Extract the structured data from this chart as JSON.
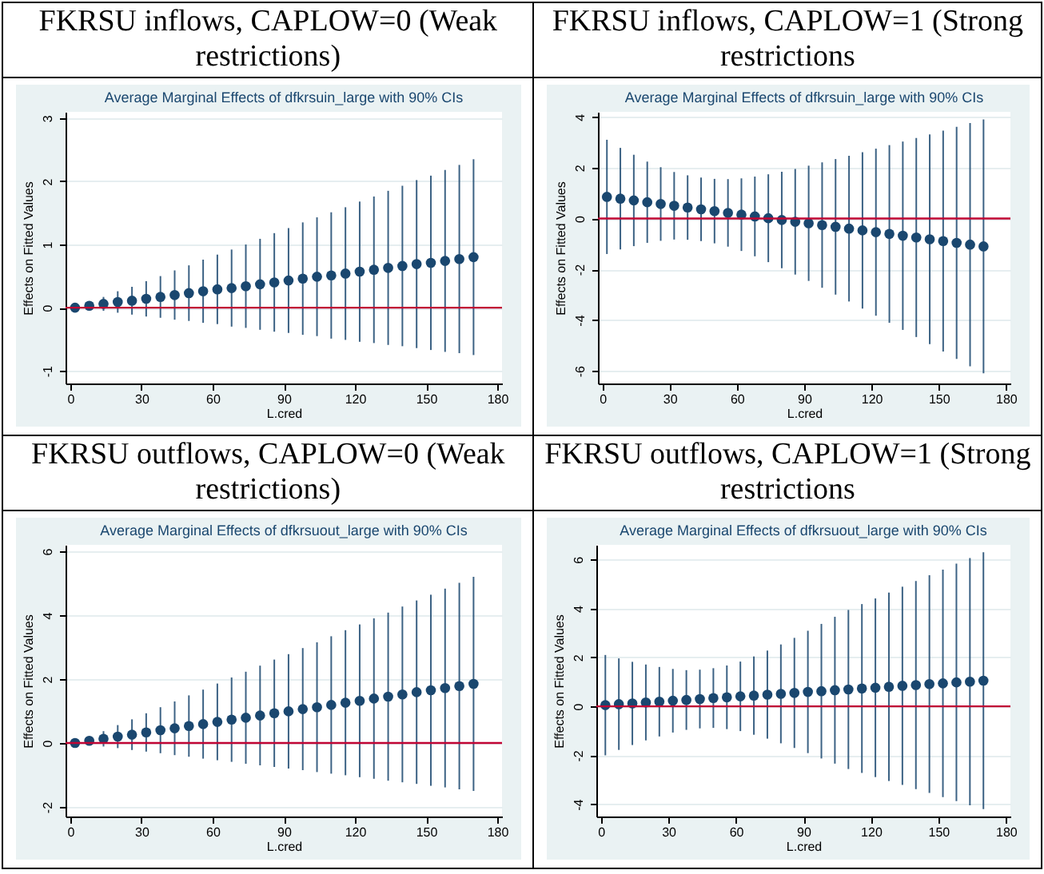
{
  "chart_data": [
    {
      "type": "scatter",
      "title": "FKRSU inflows, CAPLOW=0 (Weak restrictions)",
      "subtitle": "Average Marginal Effects of dfkrsuin_large with 90% CIs",
      "xlabel": "L.cred",
      "ylabel": "Effects on Fitted Values",
      "x": [
        2,
        8,
        14,
        20,
        26,
        32,
        38,
        44,
        50,
        56,
        62,
        68,
        74,
        80,
        86,
        92,
        98,
        104,
        110,
        116,
        122,
        128,
        134,
        140,
        146,
        152,
        158,
        164,
        170
      ],
      "xlim": [
        -2,
        182
      ],
      "xticks": [
        0,
        30,
        60,
        90,
        120,
        150,
        180
      ],
      "ylim": [
        -1.2,
        3.1
      ],
      "yticks": [
        -1,
        0,
        1,
        2,
        3
      ],
      "grid": "y",
      "marker": "circle",
      "series": [
        {
          "color": "#1a476f",
          "values": [
            0,
            0.03,
            0.06,
            0.09,
            0.11,
            0.14,
            0.17,
            0.2,
            0.23,
            0.26,
            0.29,
            0.31,
            0.34,
            0.37,
            0.4,
            0.43,
            0.46,
            0.49,
            0.51,
            0.54,
            0.57,
            0.6,
            0.63,
            0.66,
            0.69,
            0.71,
            0.74,
            0.77,
            0.8
          ],
          "errors": [
            0,
            0.06,
            0.11,
            0.17,
            0.22,
            0.28,
            0.33,
            0.39,
            0.44,
            0.5,
            0.55,
            0.61,
            0.66,
            0.72,
            0.78,
            0.83,
            0.89,
            0.94,
            1,
            1.05,
            1.11,
            1.16,
            1.22,
            1.27,
            1.33,
            1.38,
            1.44,
            1.49,
            1.55
          ]
        }
      ],
      "ref_lines": [
        {
          "axis": "y",
          "value": 0,
          "color": "#c10534"
        }
      ]
    },
    {
      "type": "scatter",
      "title": "FKRSU inflows, CAPLOW=1 (Strong restrictions",
      "subtitle": "Average Marginal Effects of dfkrsuin_large with 90% CIs",
      "xlabel": "L.cred",
      "ylabel": "Effects on Fitted Values",
      "x": [
        2,
        8,
        14,
        20,
        26,
        32,
        38,
        44,
        50,
        56,
        62,
        68,
        74,
        80,
        86,
        92,
        98,
        104,
        110,
        116,
        122,
        128,
        134,
        140,
        146,
        152,
        158,
        164,
        170
      ],
      "xlim": [
        -2,
        182
      ],
      "xticks": [
        0,
        30,
        60,
        90,
        120,
        150,
        180
      ],
      "ylim": [
        -6.5,
        4.2
      ],
      "yticks": [
        -6,
        -4,
        -2,
        0,
        2,
        4
      ],
      "grid": "y",
      "marker": "circle",
      "series": [
        {
          "color": "#1a476f",
          "values": [
            0.85,
            0.78,
            0.71,
            0.64,
            0.57,
            0.5,
            0.43,
            0.36,
            0.29,
            0.22,
            0.15,
            0.08,
            0.01,
            -0.06,
            -0.13,
            -0.19,
            -0.26,
            -0.33,
            -0.4,
            -0.47,
            -0.54,
            -0.61,
            -0.68,
            -0.75,
            -0.82,
            -0.89,
            -0.96,
            -1.03,
            -1.1
          ],
          "errors": [
            2.25,
            2.0,
            1.8,
            1.6,
            1.45,
            1.33,
            1.27,
            1.25,
            1.27,
            1.33,
            1.43,
            1.57,
            1.73,
            1.9,
            2.08,
            2.27,
            2.47,
            2.67,
            2.87,
            3.08,
            3.29,
            3.5,
            3.71,
            3.92,
            4.13,
            4.35,
            4.57,
            4.79,
            5.0
          ]
        }
      ],
      "ref_lines": [
        {
          "axis": "y",
          "value": 0,
          "color": "#c10534"
        }
      ]
    },
    {
      "type": "scatter",
      "title": "FKRSU outflows, CAPLOW=0 (Weak restrictions)",
      "subtitle": "Average Marginal Effects of dfkrsuout_large with 90% CIs",
      "xlabel": "L.cred",
      "ylabel": "Effects on Fitted Values",
      "x": [
        2,
        8,
        14,
        20,
        26,
        32,
        38,
        44,
        50,
        56,
        62,
        68,
        74,
        80,
        86,
        92,
        98,
        104,
        110,
        116,
        122,
        128,
        134,
        140,
        146,
        152,
        158,
        164,
        170
      ],
      "xlim": [
        -2,
        182
      ],
      "xticks": [
        0,
        30,
        60,
        90,
        120,
        150,
        180
      ],
      "ylim": [
        -2.3,
        6.2
      ],
      "yticks": [
        -2,
        0,
        2,
        4,
        6
      ],
      "grid": "y",
      "marker": "circle",
      "series": [
        {
          "color": "#1a476f",
          "values": [
            0,
            0.07,
            0.13,
            0.2,
            0.26,
            0.33,
            0.4,
            0.46,
            0.53,
            0.59,
            0.66,
            0.73,
            0.79,
            0.86,
            0.93,
            0.99,
            1.06,
            1.12,
            1.19,
            1.26,
            1.32,
            1.39,
            1.45,
            1.52,
            1.59,
            1.65,
            1.72,
            1.78,
            1.85
          ],
          "errors": [
            0,
            0.12,
            0.24,
            0.36,
            0.48,
            0.6,
            0.72,
            0.84,
            0.96,
            1.08,
            1.2,
            1.32,
            1.44,
            1.56,
            1.68,
            1.79,
            1.91,
            2.03,
            2.15,
            2.27,
            2.39,
            2.51,
            2.63,
            2.75,
            2.87,
            2.99,
            3.11,
            3.23,
            3.35
          ]
        }
      ],
      "ref_lines": [
        {
          "axis": "y",
          "value": 0,
          "color": "#c10534"
        }
      ]
    },
    {
      "type": "scatter",
      "title": "FKRSU outflows, CAPLOW=1 (Strong restrictions",
      "subtitle": "Average Marginal Effects of dfkrsuout_large with 90% CIs",
      "xlabel": "L.cred",
      "ylabel": "Effects on Fitted Values",
      "x": [
        2,
        8,
        14,
        20,
        26,
        32,
        38,
        44,
        50,
        56,
        62,
        68,
        74,
        80,
        86,
        92,
        98,
        104,
        110,
        116,
        122,
        128,
        134,
        140,
        146,
        152,
        158,
        164,
        170
      ],
      "xlim": [
        -2,
        182
      ],
      "xticks": [
        0,
        30,
        60,
        90,
        120,
        150,
        180
      ],
      "ylim": [
        -4.5,
        6.6
      ],
      "yticks": [
        -4,
        -2,
        0,
        2,
        4,
        6
      ],
      "grid": "y",
      "marker": "circle",
      "series": [
        {
          "color": "#1a476f",
          "values": [
            0.05,
            0.09,
            0.12,
            0.16,
            0.19,
            0.23,
            0.26,
            0.3,
            0.34,
            0.37,
            0.41,
            0.44,
            0.48,
            0.51,
            0.55,
            0.59,
            0.62,
            0.66,
            0.69,
            0.73,
            0.76,
            0.8,
            0.84,
            0.87,
            0.91,
            0.94,
            0.98,
            1.01,
            1.05
          ],
          "errors": [
            2.05,
            1.87,
            1.7,
            1.55,
            1.42,
            1.3,
            1.22,
            1.2,
            1.22,
            1.3,
            1.42,
            1.6,
            1.8,
            2.02,
            2.25,
            2.5,
            2.75,
            3.0,
            3.25,
            3.45,
            3.65,
            3.85,
            4.05,
            4.25,
            4.45,
            4.65,
            4.85,
            5.05,
            5.25
          ]
        }
      ],
      "ref_lines": [
        {
          "axis": "y",
          "value": 0,
          "color": "#c10534"
        }
      ]
    }
  ]
}
